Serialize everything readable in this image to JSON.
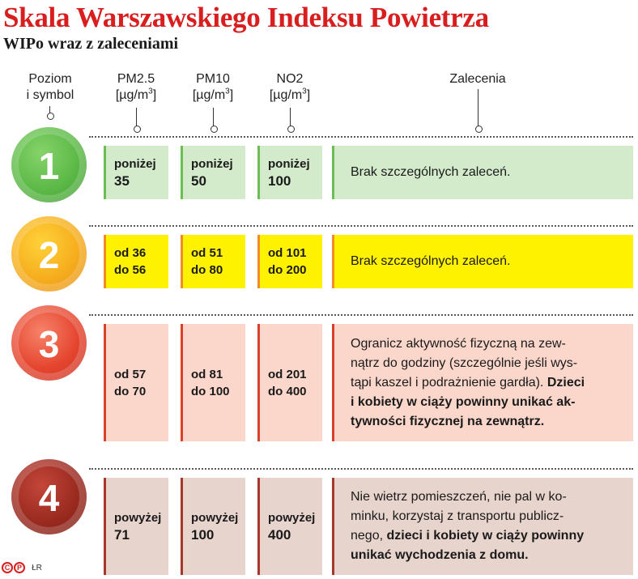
{
  "title": "Skala Warszawskiego Indeksu Powietrza",
  "subtitle": "WIPo wraz z zaleceniami",
  "columns": {
    "level": [
      "Poziom",
      "i symbol"
    ],
    "pm25": [
      "PM2.5",
      "[µg/m",
      "3",
      "]"
    ],
    "pm10": [
      "PM10",
      "[µg/m",
      "3",
      "]"
    ],
    "no2": [
      "NO2",
      "[µg/m",
      "3",
      "]"
    ],
    "recommendations": "Zalecenia"
  },
  "colors": {
    "title": "#d81e1e",
    "level1_circle": "#5cb947",
    "level1_fill": "#d3ebcb",
    "level1_accent": "#6cbd53",
    "level2_circle": "#f4a61c",
    "level2_fill": "#fff200",
    "level2_accent": "#f28c28",
    "level3_circle": "#e5452f",
    "level3_fill": "#fbd7cb",
    "level3_accent": "#d9412b",
    "level4_circle": "#9a2a1f",
    "level4_fill": "#e7d4cd",
    "level4_accent": "#a6372a"
  },
  "levels": [
    {
      "number": "1",
      "pm25": [
        "poniżej",
        "35"
      ],
      "pm10": [
        "poniżej",
        "50"
      ],
      "no2": [
        "poniżej",
        "100"
      ],
      "recommendation": [
        "Brak szczególnych zaleceń."
      ]
    },
    {
      "number": "2",
      "pm25": [
        "od 36",
        "do 56"
      ],
      "pm10": [
        "od 51",
        "do 80"
      ],
      "no2": [
        "od 101",
        "do 200"
      ],
      "recommendation": [
        "Brak szczególnych zaleceń."
      ]
    },
    {
      "number": "3",
      "pm25": [
        "od 57",
        "do 70"
      ],
      "pm10": [
        "od 81",
        "do 100"
      ],
      "no2": [
        "od 201",
        "do 400"
      ],
      "recommendation": [
        "Ogranicz aktywność fizyczną na zew-",
        "nątrz do godziny (szczególnie jeśli wys-",
        "tąpi kaszel i podrażnienie gardła).",
        "Dzieci",
        "i kobiety w ciąży powinny unikać ak-",
        "tywności fizycznej na zewnątrz."
      ]
    },
    {
      "number": "4",
      "pm25": [
        "powyżej",
        "71"
      ],
      "pm10": [
        "powyżej",
        "100"
      ],
      "no2": [
        "powyżej",
        "400"
      ],
      "recommendation": [
        "Nie wietrz pomieszczeń, nie pal w ko-",
        "minku, korzystaj z transportu publicz-",
        "nego,",
        "dzieci i  kobiety w ciąży powinny",
        "unikać wychodzenia z domu."
      ]
    }
  ],
  "footer": {
    "mark_c": "C",
    "mark_p": "P",
    "author": "ŁR"
  }
}
